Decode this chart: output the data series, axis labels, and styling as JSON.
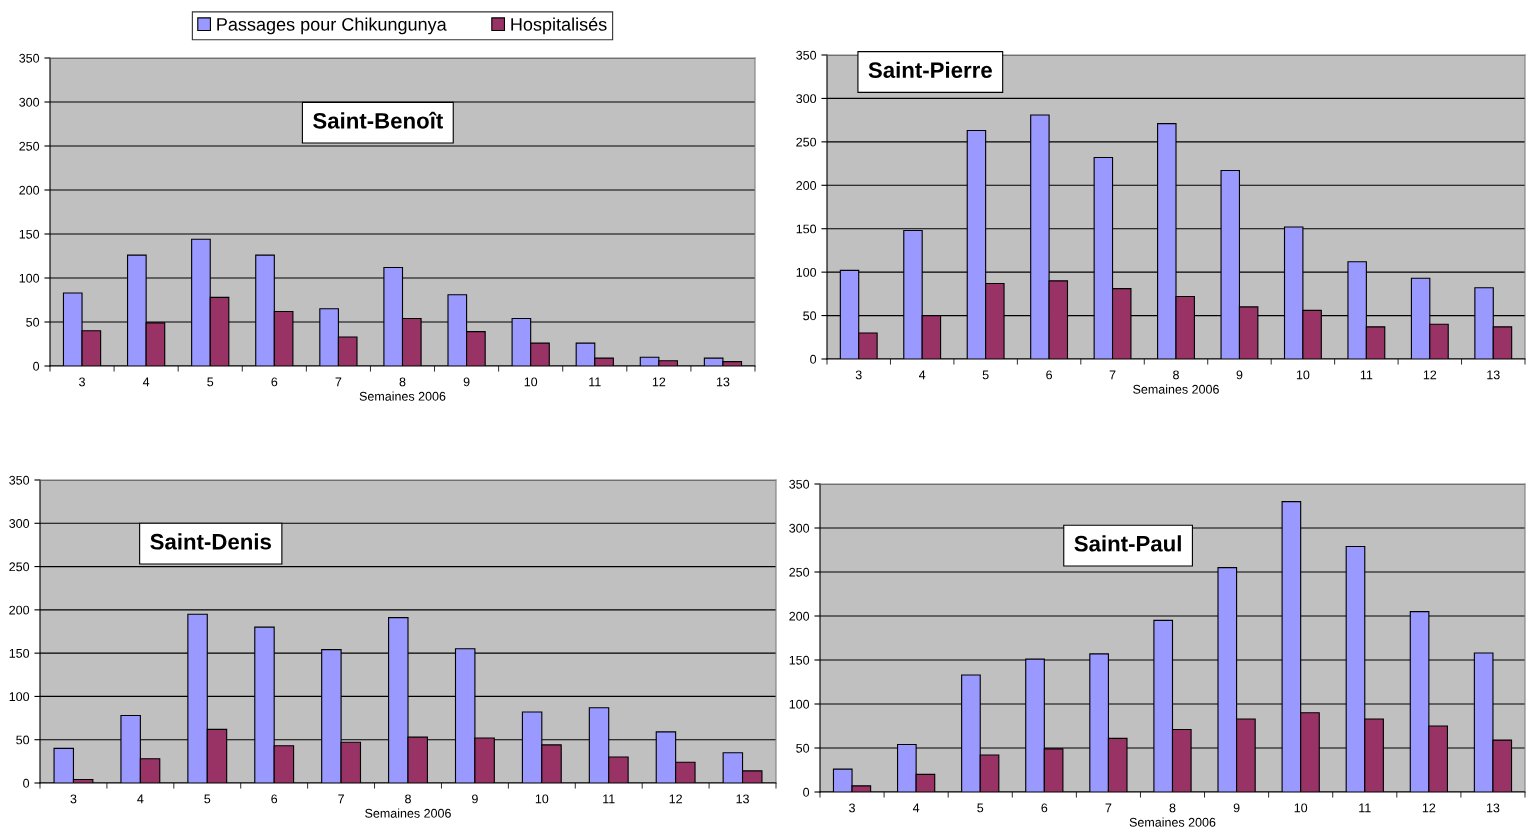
{
  "chart_data": [
    {
      "type": "bar",
      "title": "Saint-Benoît",
      "xlabel": "Semaines 2006",
      "categories": [
        "3",
        "4",
        "5",
        "6",
        "7",
        "8",
        "9",
        "10",
        "11",
        "12",
        "13"
      ],
      "ylim": [
        0,
        350
      ],
      "yticks": [
        0,
        50,
        100,
        150,
        200,
        250,
        300,
        350
      ],
      "grid": "y",
      "legend": "top",
      "series": [
        {
          "name": "Passages pour Chikungunya",
          "color": "#9999ff",
          "values": [
            83,
            126,
            144,
            126,
            65,
            112,
            81,
            54,
            26,
            10,
            9
          ]
        },
        {
          "name": "Hospitalisés",
          "color": "#993366",
          "values": [
            40,
            49,
            78,
            62,
            33,
            54,
            39,
            26,
            9,
            6,
            5
          ]
        }
      ]
    },
    {
      "type": "bar",
      "title": "Saint-Pierre",
      "xlabel": "Semaines 2006",
      "categories": [
        "3",
        "4",
        "5",
        "6",
        "7",
        "8",
        "9",
        "10",
        "11",
        "12",
        "13"
      ],
      "ylim": [
        0,
        350
      ],
      "yticks": [
        0,
        50,
        100,
        150,
        200,
        250,
        300,
        350
      ],
      "grid": "y",
      "series": [
        {
          "color": "#9999ff",
          "values": [
            102,
            148,
            263,
            281,
            232,
            271,
            217,
            152,
            112,
            93,
            82
          ]
        },
        {
          "color": "#993366",
          "values": [
            30,
            50,
            87,
            90,
            81,
            72,
            60,
            56,
            37,
            40,
            37
          ]
        }
      ]
    },
    {
      "type": "bar",
      "title": "Saint-Denis",
      "xlabel": "Semaines 2006",
      "categories": [
        "3",
        "4",
        "5",
        "6",
        "7",
        "8",
        "9",
        "10",
        "11",
        "12",
        "13"
      ],
      "ylim": [
        0,
        350
      ],
      "yticks": [
        0,
        50,
        100,
        150,
        200,
        250,
        300,
        350
      ],
      "grid": "y",
      "series": [
        {
          "color": "#9999ff",
          "values": [
            40,
            78,
            195,
            180,
            154,
            191,
            155,
            82,
            87,
            59,
            35
          ]
        },
        {
          "color": "#993366",
          "values": [
            4,
            28,
            62,
            43,
            47,
            53,
            52,
            44,
            30,
            24,
            14
          ]
        }
      ]
    },
    {
      "type": "bar",
      "title": "Saint-Paul",
      "xlabel": "Semaines 2006",
      "categories": [
        "3",
        "4",
        "5",
        "6",
        "7",
        "8",
        "9",
        "10",
        "11",
        "12",
        "13"
      ],
      "ylim": [
        0,
        350
      ],
      "yticks": [
        0,
        50,
        100,
        150,
        200,
        250,
        300,
        350
      ],
      "grid": "y",
      "series": [
        {
          "color": "#9999ff",
          "values": [
            26,
            54,
            133,
            151,
            157,
            195,
            255,
            330,
            279,
            205,
            158
          ]
        },
        {
          "color": "#993366",
          "values": [
            7,
            20,
            42,
            49,
            61,
            71,
            83,
            90,
            83,
            75,
            59
          ]
        }
      ]
    }
  ]
}
